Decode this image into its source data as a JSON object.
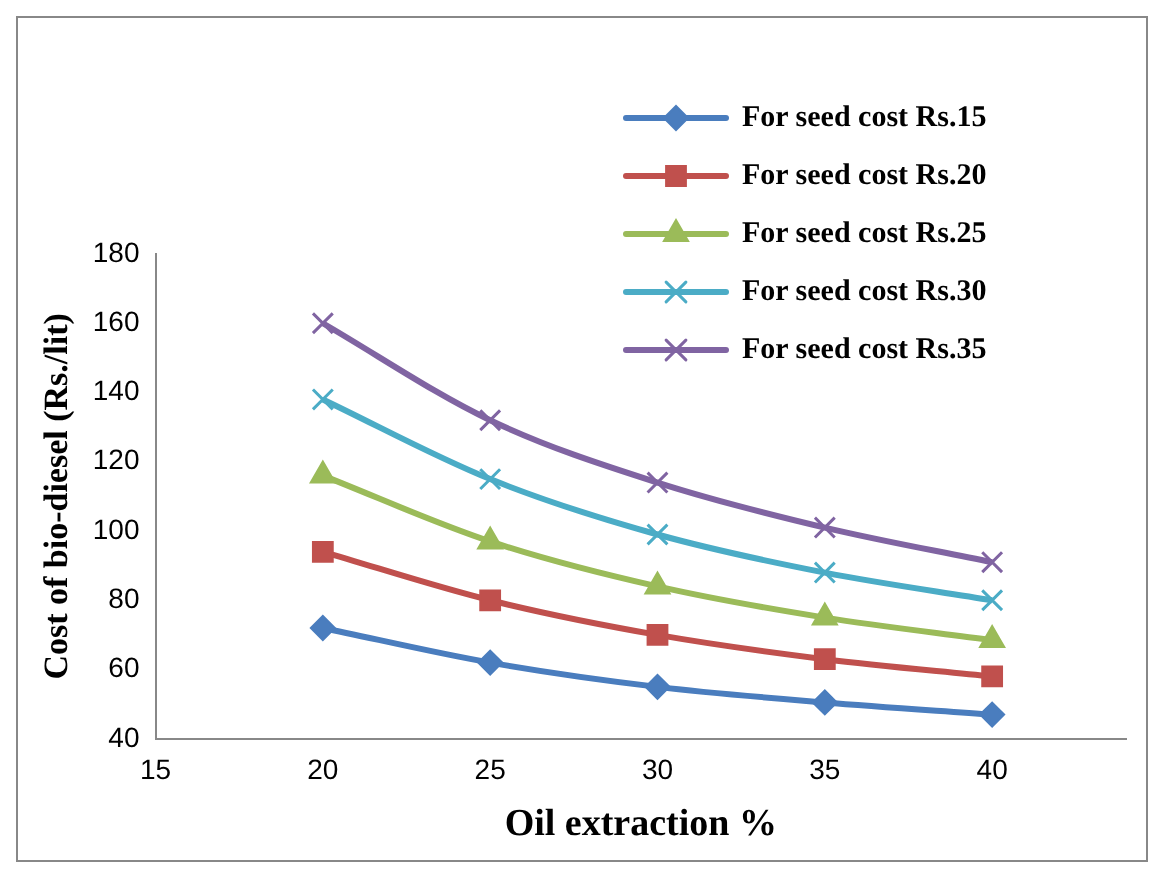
{
  "chart_data": {
    "type": "line",
    "xlabel": "Oil extraction %",
    "ylabel": "Cost of bio-diesel (Rs./lit)",
    "x": [
      20,
      25,
      30,
      35,
      40
    ],
    "series": [
      {
        "name": "For seed cost Rs.15",
        "color": "#4a7dbe",
        "marker": "diamond",
        "values": [
          72,
          62,
          55,
          50.5,
          47
        ]
      },
      {
        "name": "For seed cost Rs.20",
        "color": "#c0504d",
        "marker": "square",
        "values": [
          94,
          80,
          70,
          63,
          58
        ]
      },
      {
        "name": "For seed cost Rs.25",
        "color": "#9bbb59",
        "marker": "triangle",
        "values": [
          116,
          97,
          84,
          75,
          68.5
        ]
      },
      {
        "name": "For seed cost Rs.30",
        "color": "#4bacc6",
        "marker": "cross",
        "values": [
          138,
          115,
          99,
          88,
          80
        ]
      },
      {
        "name": "For seed cost Rs.35",
        "color": "#8064a2",
        "marker": "cross",
        "values": [
          160,
          132,
          114,
          101,
          91
        ]
      }
    ],
    "xlim": [
      15,
      44
    ],
    "xticks": [
      15,
      20,
      25,
      30,
      35,
      40
    ],
    "ylim": [
      40,
      180
    ],
    "yticks": [
      40,
      60,
      80,
      100,
      120,
      140,
      160,
      180
    ],
    "grid": false,
    "legend": "top right",
    "line_style": "solid"
  }
}
